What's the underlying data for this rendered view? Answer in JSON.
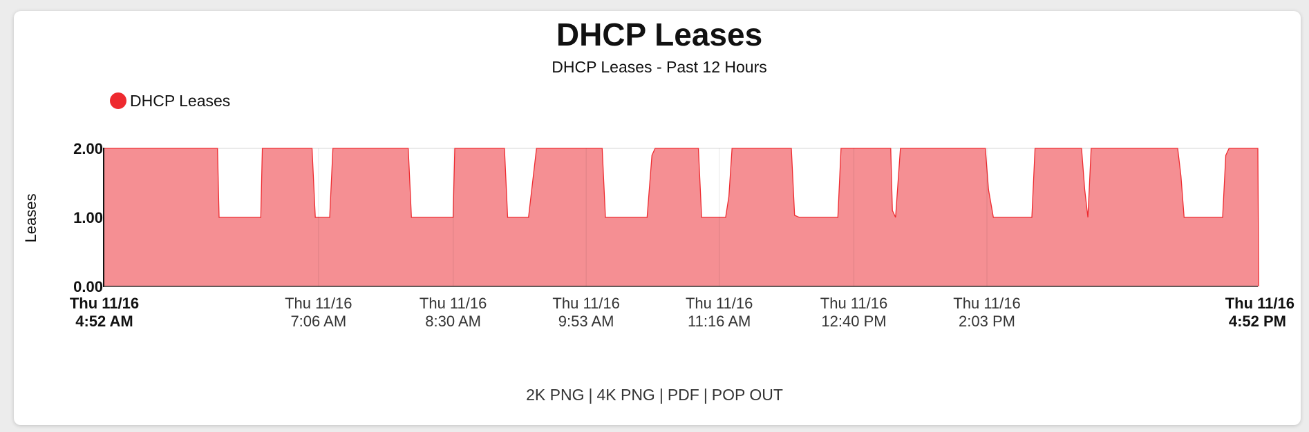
{
  "footer": {
    "links": [
      "2K PNG",
      "4K PNG",
      "PDF",
      "POP OUT"
    ],
    "separator": "|"
  },
  "chart_data": {
    "type": "area",
    "title": "DHCP Leases",
    "subtitle": "DHCP Leases - Past 12 Hours",
    "ylabel": "Leases",
    "xlabel": "",
    "legend": {
      "position": "top-left",
      "entries": [
        {
          "name": "DHCP Leases",
          "color": "#ee2a2f"
        }
      ]
    },
    "grid": true,
    "ylim": [
      0,
      2
    ],
    "xlim_minutes": [
      0,
      720
    ],
    "y_ticks": [
      {
        "value": 0,
        "label": "0.00"
      },
      {
        "value": 1,
        "label": "1.00"
      },
      {
        "value": 2,
        "label": "2.00"
      }
    ],
    "x_ticks": [
      {
        "t": 0,
        "line1": "Thu 11/16",
        "line2": "4:52 AM",
        "bold": true
      },
      {
        "t": 134,
        "line1": "Thu 11/16",
        "line2": "7:06 AM",
        "bold": false
      },
      {
        "t": 218,
        "line1": "Thu 11/16",
        "line2": "8:30 AM",
        "bold": false
      },
      {
        "t": 301,
        "line1": "Thu 11/16",
        "line2": "9:53 AM",
        "bold": false
      },
      {
        "t": 384,
        "line1": "Thu 11/16",
        "line2": "11:16 AM",
        "bold": false
      },
      {
        "t": 468,
        "line1": "Thu 11/16",
        "line2": "12:40 PM",
        "bold": false
      },
      {
        "t": 551,
        "line1": "Thu 11/16",
        "line2": "2:03 PM",
        "bold": false
      },
      {
        "t": 720,
        "line1": "Thu 11/16",
        "line2": "4:52 PM",
        "bold": true
      }
    ],
    "series": [
      {
        "name": "DHCP Leases",
        "color": "#ee2a2f",
        "fill": "#f58f93",
        "points": [
          [
            0,
            2
          ],
          [
            71,
            2
          ],
          [
            72,
            1
          ],
          [
            98,
            1
          ],
          [
            99,
            2
          ],
          [
            130,
            2
          ],
          [
            132,
            1
          ],
          [
            141,
            1
          ],
          [
            143,
            2
          ],
          [
            190,
            2
          ],
          [
            192,
            1
          ],
          [
            218,
            1
          ],
          [
            219,
            2
          ],
          [
            250,
            2
          ],
          [
            252,
            1
          ],
          [
            265,
            1
          ],
          [
            270,
            2
          ],
          [
            311,
            2
          ],
          [
            313,
            1
          ],
          [
            339,
            1
          ],
          [
            342,
            1.9
          ],
          [
            344,
            2
          ],
          [
            371,
            2
          ],
          [
            373,
            1
          ],
          [
            388,
            1
          ],
          [
            390,
            1.3
          ],
          [
            392,
            2
          ],
          [
            429,
            2
          ],
          [
            431,
            1.03
          ],
          [
            434,
            1
          ],
          [
            458,
            1
          ],
          [
            460,
            2
          ],
          [
            491,
            2
          ],
          [
            492,
            1.1
          ],
          [
            494,
            1
          ],
          [
            497,
            2
          ],
          [
            550,
            2
          ],
          [
            552,
            1.4
          ],
          [
            555,
            1
          ],
          [
            579,
            1
          ],
          [
            581,
            2
          ],
          [
            610,
            2
          ],
          [
            612,
            1.4
          ],
          [
            614,
            1
          ],
          [
            616,
            2
          ],
          [
            670,
            2
          ],
          [
            672,
            1.6
          ],
          [
            674,
            1
          ],
          [
            698,
            1
          ],
          [
            700,
            1.9
          ],
          [
            702,
            2
          ],
          [
            720,
            2
          ],
          [
            720.5,
            0
          ]
        ]
      }
    ]
  }
}
